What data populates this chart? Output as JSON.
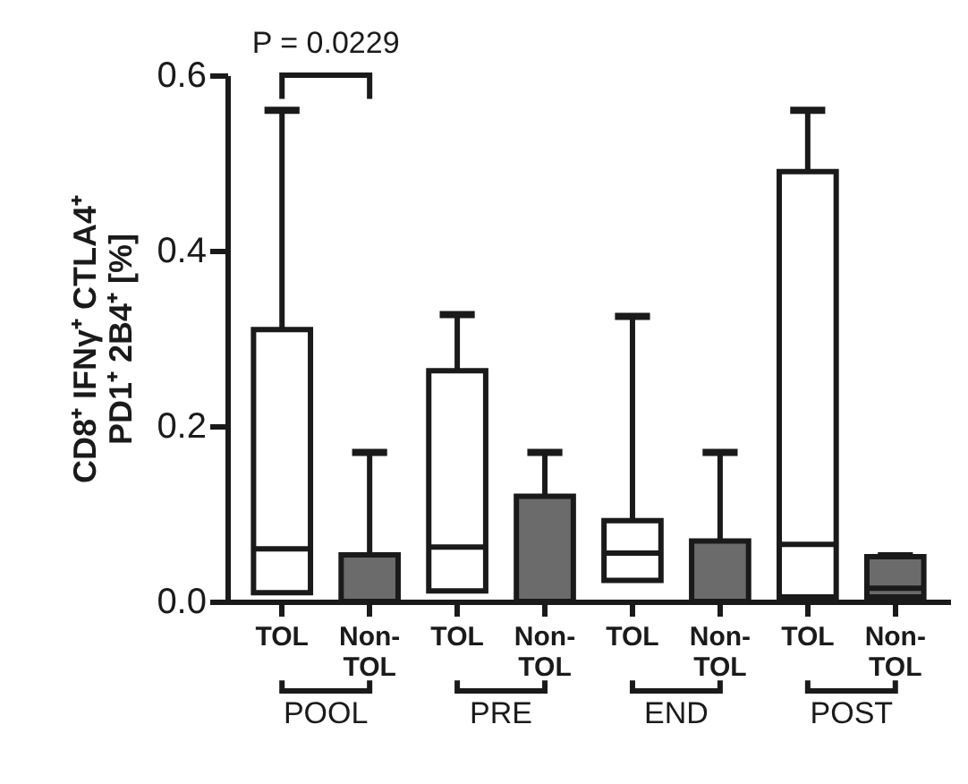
{
  "chart_data": {
    "type": "box",
    "ylabel": "CD8⁺ IFNγ⁺ CTLA4⁺ PD1⁺ 2B4⁺ [%]",
    "categories": [
      "TOL",
      "Non-TOL",
      "TOL",
      "Non-TOL",
      "TOL",
      "Non-TOL",
      "TOL",
      "Non-TOL"
    ],
    "colors": [
      "#ffffff",
      "#6b6b6b",
      "#ffffff",
      "#6b6b6b",
      "#ffffff",
      "#6b6b6b",
      "#ffffff",
      "#6b6b6b"
    ],
    "boxes": [
      {
        "low": 0.01,
        "q1": 0.01,
        "median": 0.06,
        "q3": 0.31,
        "high": 0.56
      },
      {
        "low": 0,
        "q1": 0,
        "median": 0,
        "q3": 0.053,
        "high": 0.17
      },
      {
        "low": 0.012,
        "q1": 0.012,
        "median": 0.062,
        "q3": 0.263,
        "high": 0.327
      },
      {
        "low": 0,
        "q1": 0,
        "median": 0,
        "q3": 0.12,
        "high": 0.17
      },
      {
        "low": 0.024,
        "q1": 0.024,
        "median": 0.055,
        "q3": 0.092,
        "high": 0.325
      },
      {
        "low": 0,
        "q1": 0,
        "median": 0,
        "q3": 0.069,
        "high": 0.17
      },
      {
        "low": 0.005,
        "q1": 0.005,
        "median": 0.065,
        "q3": 0.49,
        "high": 0.56
      },
      {
        "low": 0.005,
        "q1": 0.005,
        "median": 0.015,
        "q3": 0.051,
        "high": 0.052
      }
    ],
    "ylim": [
      0,
      0.6
    ],
    "yticks": [
      {
        "value": 0,
        "label": "0.0"
      },
      0.2,
      0.4,
      0.6
    ],
    "annotations": [
      "P = 0.0229",
      "POOL",
      "PRE",
      "END",
      "POST"
    ]
  }
}
